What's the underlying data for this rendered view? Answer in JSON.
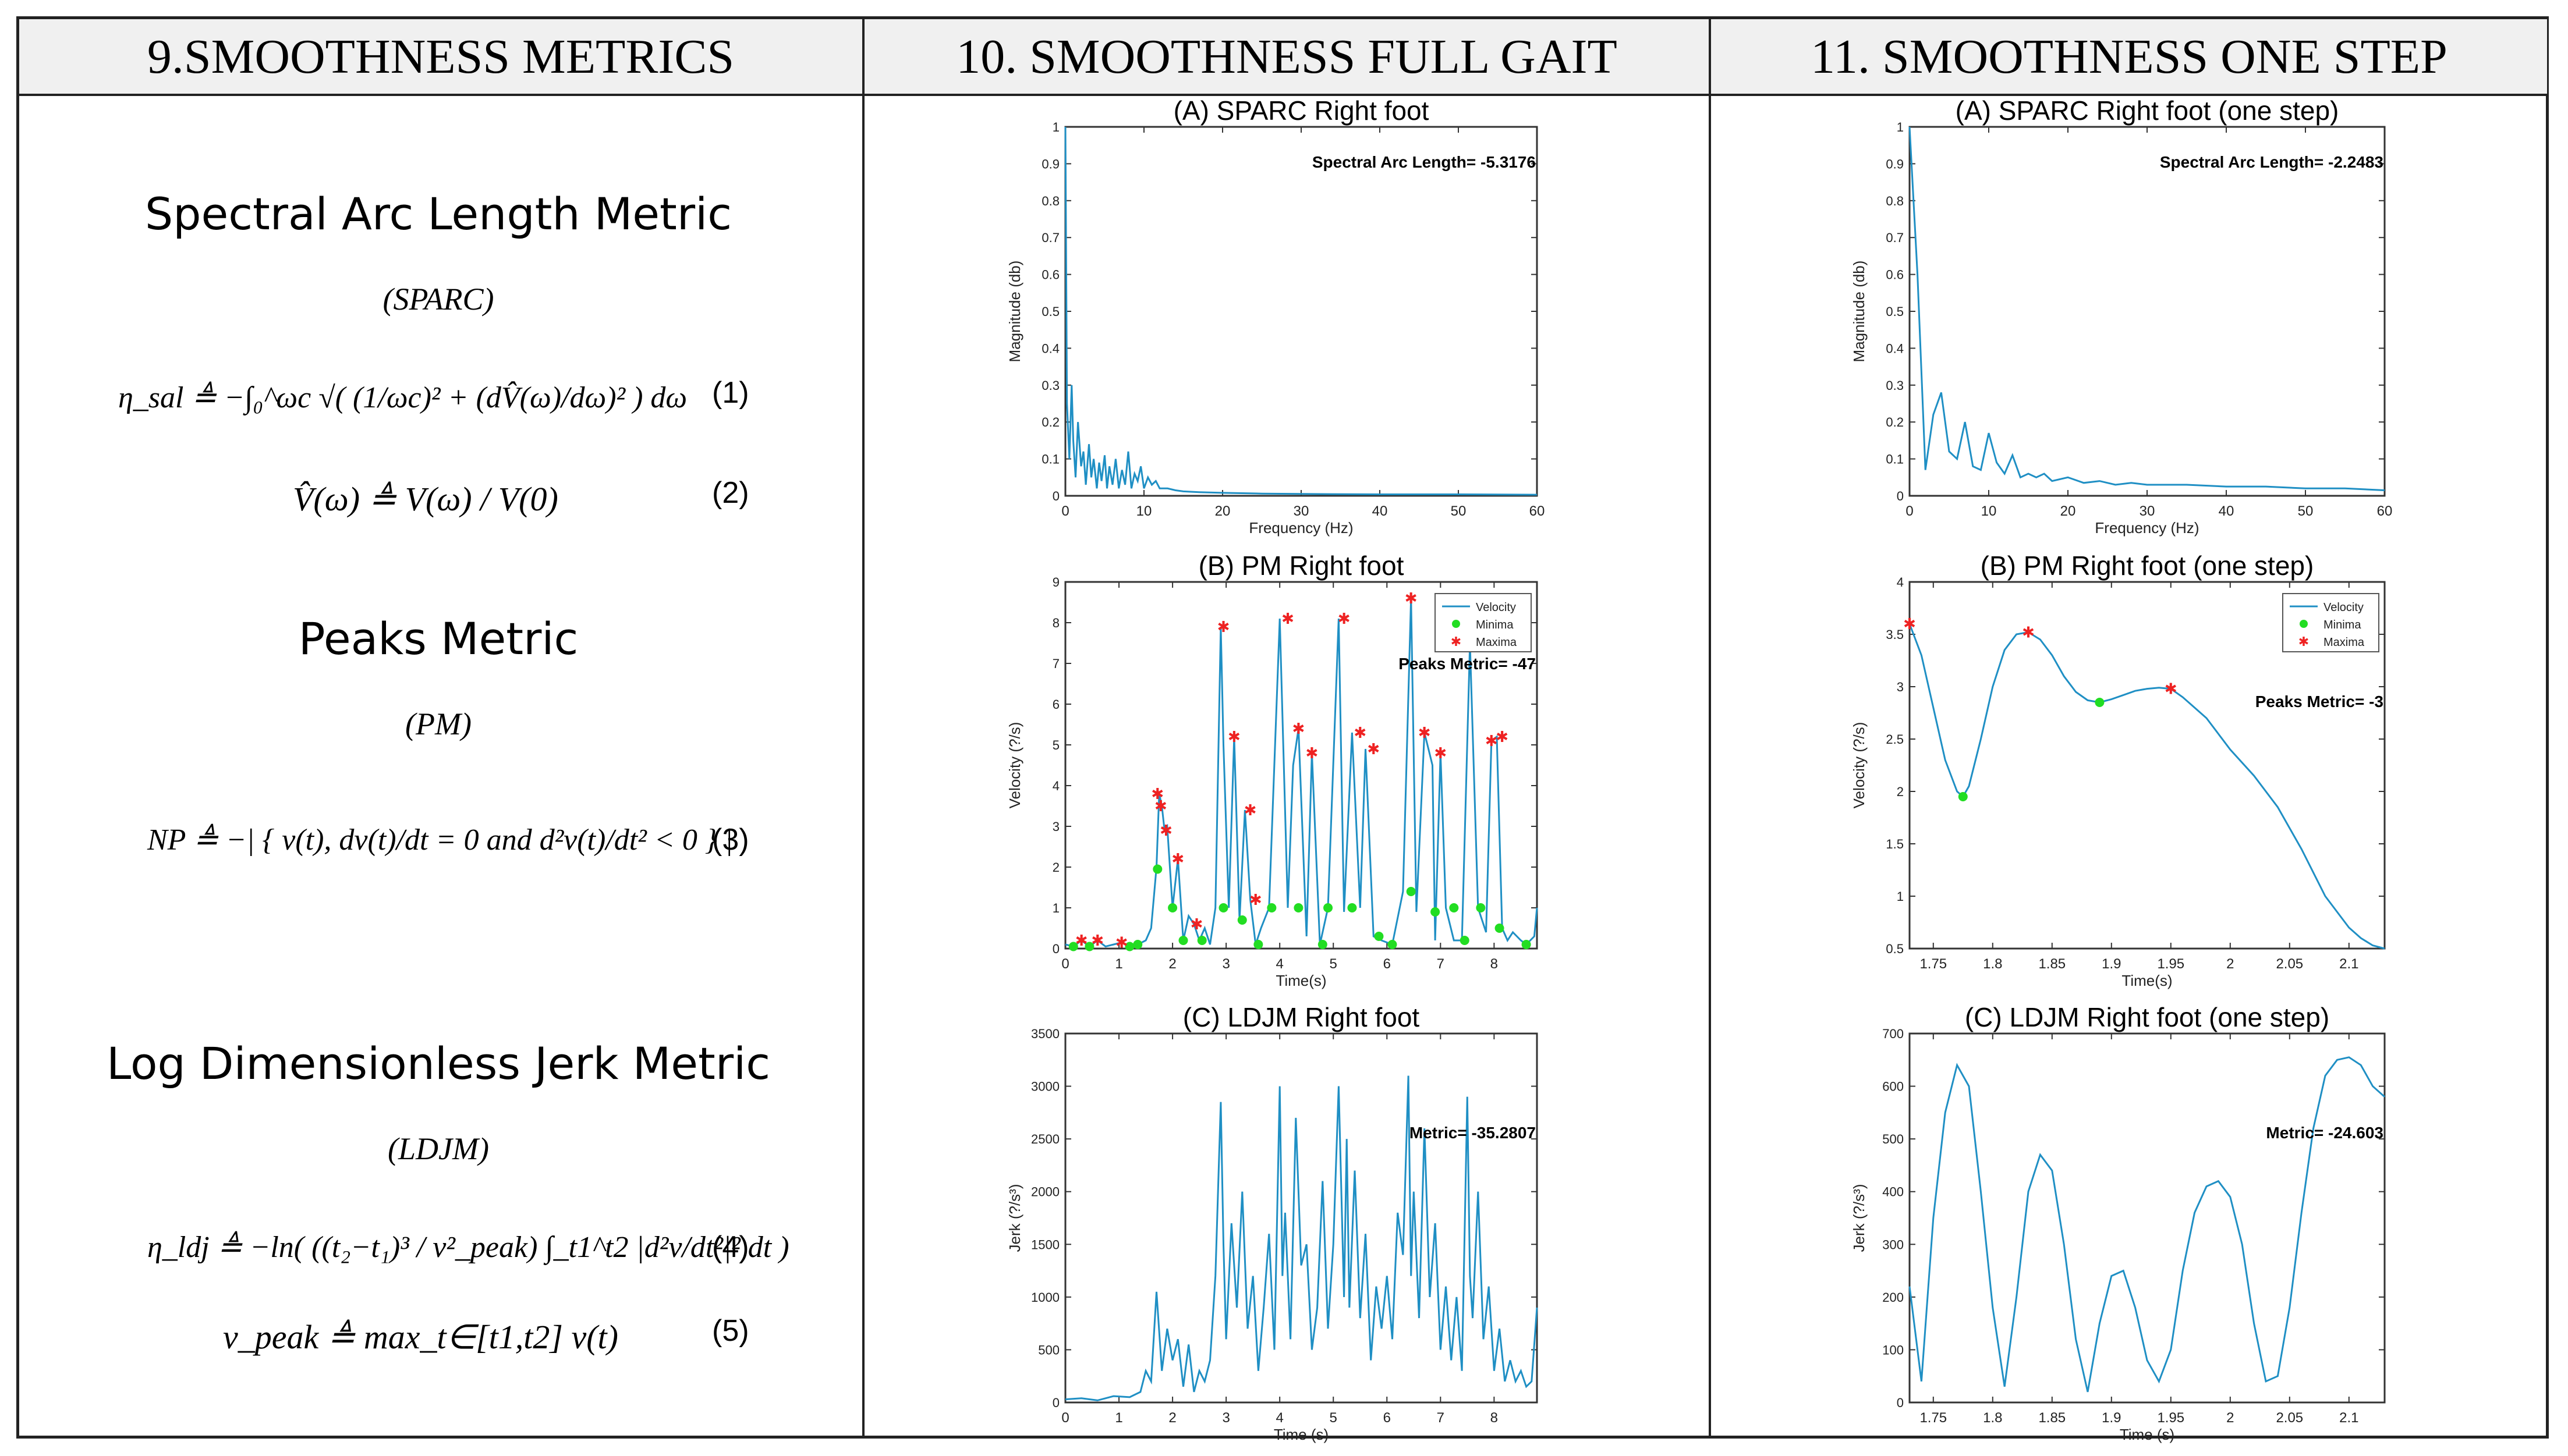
{
  "headers": [
    "9.SMOOTHNESS METRICS",
    "10. SMOOTHNESS FULL GAIT",
    "11. SMOOTHNESS ONE STEP"
  ],
  "metrics": [
    {
      "title": "Spectral Arc Length Metric",
      "abbr": "(SPARC)"
    },
    {
      "title": "Peaks Metric",
      "abbr": "(PM)"
    },
    {
      "title": "Log Dimensionless Jerk Metric",
      "abbr": "(LDJM)"
    }
  ],
  "equations": [
    {
      "text": "η_sal ≜ −∫₀^ωc √( (1/ωc)² + (dV̂(ω)/dω)² ) dω",
      "num": "(1)"
    },
    {
      "text": "V̂(ω) ≜ V(ω) / V(0)",
      "num": "(2)"
    },
    {
      "text": "NP ≜ −| { v(t), dv(t)/dt = 0 and d²v(t)/dt² < 0 } |",
      "num": "(3)"
    },
    {
      "text": "η_ldj ≜ −ln( ((t₂−t₁)³ / v²_peak) ∫_t1^t2 |d²v/dt²|² dt )",
      "num": "(4)"
    },
    {
      "text": "v_peak ≜ max_t∈[t1,t2] v(t)",
      "num": "(5)"
    }
  ],
  "chart_data": [
    {
      "id": "sparc_full",
      "type": "line",
      "title": "(A) SPARC Right foot",
      "xlabel": "Frequency (Hz)",
      "ylabel": "Magnitude (db)",
      "xlim": [
        0,
        60
      ],
      "ylim": [
        0,
        1
      ],
      "xticks": [
        0,
        10,
        20,
        30,
        40,
        50,
        60
      ],
      "yticks": [
        0,
        0.1,
        0.2,
        0.3,
        0.4,
        0.5,
        0.6,
        0.7,
        0.8,
        0.9,
        1
      ],
      "annotation": "Spectral Arc Length= -5.3176",
      "series": [
        {
          "name": "Magnitude",
          "x": [
            0,
            0.2,
            0.5,
            0.8,
            1,
            1.3,
            1.6,
            2,
            2.3,
            2.6,
            3,
            3.3,
            3.6,
            4,
            4.3,
            4.6,
            5,
            5.3,
            5.6,
            6,
            6.4,
            6.8,
            7.2,
            7.6,
            8,
            8.4,
            8.8,
            9.2,
            9.6,
            10,
            10.5,
            11,
            11.5,
            12,
            13,
            14,
            15,
            17,
            20,
            25,
            30,
            40,
            50,
            60
          ],
          "y": [
            1,
            0.25,
            0.1,
            0.3,
            0.15,
            0.05,
            0.2,
            0.08,
            0.12,
            0.03,
            0.14,
            0.05,
            0.1,
            0.02,
            0.09,
            0.04,
            0.11,
            0.02,
            0.08,
            0.03,
            0.1,
            0.02,
            0.07,
            0.03,
            0.12,
            0.02,
            0.06,
            0.04,
            0.08,
            0.02,
            0.05,
            0.03,
            0.04,
            0.02,
            0.02,
            0.015,
            0.012,
            0.01,
            0.008,
            0.006,
            0.005,
            0.004,
            0.004,
            0.003
          ]
        }
      ]
    },
    {
      "id": "pm_full",
      "type": "line",
      "title": "(B) PM Right foot",
      "xlabel": "Time(s)",
      "ylabel": "Velocity (?/s)",
      "xlim": [
        0,
        8.8
      ],
      "ylim": [
        0,
        9
      ],
      "xticks": [
        0,
        1,
        2,
        3,
        4,
        5,
        6,
        7,
        8
      ],
      "yticks": [
        0,
        1,
        2,
        3,
        4,
        5,
        6,
        7,
        8,
        9
      ],
      "annotation": "Peaks Metric= -47",
      "legend": [
        "Velocity",
        "Minima",
        "Maxima"
      ],
      "series": [
        {
          "name": "Velocity",
          "x": [
            0,
            0.15,
            0.3,
            0.45,
            0.6,
            0.75,
            0.9,
            1.05,
            1.2,
            1.35,
            1.5,
            1.6,
            1.7,
            1.75,
            1.8,
            1.85,
            1.9,
            2.0,
            2.1,
            2.2,
            2.3,
            2.4,
            2.5,
            2.6,
            2.7,
            2.8,
            2.9,
            2.95,
            3.05,
            3.15,
            3.25,
            3.35,
            3.45,
            3.55,
            3.65,
            3.8,
            4.0,
            4.15,
            4.25,
            4.35,
            4.5,
            4.6,
            4.75,
            4.9,
            5.1,
            5.2,
            5.35,
            5.5,
            5.6,
            5.75,
            5.9,
            6.1,
            6.3,
            6.45,
            6.55,
            6.7,
            6.85,
            6.9,
            7.0,
            7.1,
            7.25,
            7.4,
            7.55,
            7.7,
            7.85,
            7.95,
            8.05,
            8.15,
            8.25,
            8.35,
            8.5,
            8.6,
            8.75,
            8.8
          ],
          "y": [
            0.1,
            0.05,
            0.2,
            0.05,
            0.2,
            0.05,
            0.1,
            0.15,
            0.05,
            0.1,
            0.2,
            0.5,
            2.0,
            3.8,
            3.5,
            2.9,
            3.0,
            1.0,
            2.2,
            0.2,
            0.8,
            0.6,
            0.2,
            0.5,
            0.1,
            1.0,
            7.9,
            5.0,
            1.0,
            5.2,
            0.7,
            3.4,
            1.2,
            0.1,
            0.5,
            1.0,
            8.1,
            1.0,
            4.5,
            5.4,
            0.3,
            4.8,
            0.1,
            1.0,
            8.1,
            0.9,
            5.3,
            1.0,
            4.9,
            0.3,
            0.2,
            0.1,
            1.4,
            8.6,
            0.9,
            5.3,
            4.5,
            0.2,
            4.8,
            1.0,
            0.2,
            0.2,
            7.5,
            1.0,
            0.4,
            5.1,
            5.2,
            0.5,
            0.2,
            0.4,
            0.2,
            0.1,
            0.3,
            1.0
          ]
        }
      ],
      "maxima": [
        [
          1.72,
          3.8
        ],
        [
          1.78,
          3.5
        ],
        [
          1.88,
          2.9
        ],
        [
          2.1,
          2.2
        ],
        [
          2.95,
          7.9
        ],
        [
          3.15,
          5.2
        ],
        [
          3.45,
          3.4
        ],
        [
          3.55,
          1.2
        ],
        [
          4.15,
          8.1
        ],
        [
          4.35,
          5.4
        ],
        [
          4.6,
          4.8
        ],
        [
          5.2,
          8.1
        ],
        [
          5.5,
          5.3
        ],
        [
          5.75,
          4.9
        ],
        [
          6.45,
          8.6
        ],
        [
          6.7,
          5.3
        ],
        [
          7.0,
          4.8
        ],
        [
          7.55,
          7.5
        ],
        [
          7.95,
          5.1
        ],
        [
          8.15,
          5.2
        ],
        [
          0.3,
          0.2
        ],
        [
          0.6,
          0.2
        ],
        [
          1.05,
          0.15
        ],
        [
          2.45,
          0.6
        ]
      ],
      "minima": [
        [
          1.72,
          1.95
        ],
        [
          2.0,
          1.0
        ],
        [
          2.95,
          1.0
        ],
        [
          3.3,
          0.7
        ],
        [
          3.85,
          1.0
        ],
        [
          4.35,
          1.0
        ],
        [
          4.9,
          1.0
        ],
        [
          5.35,
          1.0
        ],
        [
          5.85,
          0.3
        ],
        [
          6.45,
          1.4
        ],
        [
          6.9,
          0.9
        ],
        [
          7.25,
          1.0
        ],
        [
          7.75,
          1.0
        ],
        [
          8.1,
          0.5
        ],
        [
          0.15,
          0.05
        ],
        [
          0.45,
          0.05
        ],
        [
          1.2,
          0.05
        ],
        [
          1.35,
          0.1
        ],
        [
          2.2,
          0.2
        ],
        [
          2.55,
          0.2
        ],
        [
          3.6,
          0.1
        ],
        [
          4.8,
          0.1
        ],
        [
          6.1,
          0.1
        ],
        [
          7.45,
          0.2
        ],
        [
          8.6,
          0.1
        ]
      ]
    },
    {
      "id": "ldjm_full",
      "type": "line",
      "title": "(C) LDJM Right foot",
      "xlabel": "Time (s)",
      "ylabel": "Jerk (?/s³)",
      "xlim": [
        0,
        8.8
      ],
      "ylim": [
        0,
        3500
      ],
      "xticks": [
        0,
        1,
        2,
        3,
        4,
        5,
        6,
        7,
        8
      ],
      "yticks": [
        0,
        500,
        1000,
        1500,
        2000,
        2500,
        3000,
        3500
      ],
      "annotation": "Metric= -35.2807",
      "series": [
        {
          "name": "Jerk",
          "x": [
            0,
            0.3,
            0.6,
            0.9,
            1.2,
            1.4,
            1.5,
            1.6,
            1.7,
            1.8,
            1.9,
            2.0,
            2.1,
            2.2,
            2.3,
            2.4,
            2.5,
            2.6,
            2.7,
            2.8,
            2.9,
            2.95,
            3.0,
            3.1,
            3.2,
            3.3,
            3.4,
            3.5,
            3.6,
            3.7,
            3.8,
            3.9,
            4.0,
            4.05,
            4.1,
            4.2,
            4.3,
            4.4,
            4.5,
            4.6,
            4.7,
            4.8,
            4.9,
            5.0,
            5.1,
            5.2,
            5.25,
            5.3,
            5.4,
            5.5,
            5.6,
            5.7,
            5.8,
            5.9,
            6.0,
            6.1,
            6.2,
            6.3,
            6.4,
            6.45,
            6.5,
            6.6,
            6.7,
            6.8,
            6.9,
            7.0,
            7.1,
            7.2,
            7.3,
            7.4,
            7.5,
            7.55,
            7.6,
            7.7,
            7.8,
            7.9,
            8.0,
            8.1,
            8.2,
            8.3,
            8.4,
            8.5,
            8.6,
            8.7,
            8.8
          ],
          "y": [
            30,
            40,
            20,
            60,
            50,
            100,
            300,
            200,
            1050,
            300,
            700,
            400,
            600,
            150,
            550,
            100,
            300,
            200,
            400,
            1200,
            2850,
            1500,
            600,
            1700,
            900,
            2000,
            700,
            1200,
            300,
            900,
            1600,
            500,
            3000,
            1200,
            1800,
            600,
            2700,
            1300,
            1500,
            500,
            900,
            2100,
            700,
            1500,
            3000,
            1000,
            2500,
            900,
            2200,
            800,
            1600,
            400,
            1100,
            700,
            1200,
            600,
            1800,
            1400,
            3100,
            1200,
            2000,
            800,
            2600,
            1000,
            1700,
            500,
            1100,
            400,
            1000,
            300,
            2900,
            1200,
            800,
            2000,
            600,
            1100,
            300,
            700,
            200,
            400,
            200,
            300,
            150,
            200,
            900
          ]
        }
      ]
    },
    {
      "id": "sparc_step",
      "type": "line",
      "title": "(A) SPARC Right foot (one step)",
      "xlabel": "Frequency (Hz)",
      "ylabel": "Magnitude (db)",
      "xlim": [
        0,
        60
      ],
      "ylim": [
        0,
        1
      ],
      "xticks": [
        0,
        10,
        20,
        30,
        40,
        50,
        60
      ],
      "yticks": [
        0,
        0.1,
        0.2,
        0.3,
        0.4,
        0.5,
        0.6,
        0.7,
        0.8,
        0.9,
        1
      ],
      "annotation": "Spectral Arc Length= -2.2483",
      "series": [
        {
          "name": "Magnitude",
          "x": [
            0,
            1,
            2,
            3,
            4,
            5,
            6,
            7,
            8,
            9,
            10,
            11,
            12,
            13,
            14,
            15,
            16,
            17,
            18,
            20,
            22,
            24,
            26,
            28,
            30,
            35,
            40,
            45,
            50,
            55,
            60
          ],
          "y": [
            1,
            0.6,
            0.07,
            0.22,
            0.28,
            0.12,
            0.1,
            0.2,
            0.08,
            0.07,
            0.17,
            0.09,
            0.06,
            0.11,
            0.05,
            0.06,
            0.05,
            0.06,
            0.04,
            0.05,
            0.035,
            0.04,
            0.03,
            0.035,
            0.03,
            0.03,
            0.025,
            0.025,
            0.02,
            0.02,
            0.015
          ]
        }
      ]
    },
    {
      "id": "pm_step",
      "type": "line",
      "title": "(B) PM Right foot (one step)",
      "xlabel": "Time(s)",
      "ylabel": "Velocity (?/s)",
      "xlim": [
        1.73,
        2.13
      ],
      "ylim": [
        0.5,
        4
      ],
      "xticks": [
        1.75,
        1.8,
        1.85,
        1.9,
        1.95,
        2,
        2.05,
        2.1
      ],
      "yticks": [
        0.5,
        1,
        1.5,
        2,
        2.5,
        3,
        3.5,
        4
      ],
      "annotation": "Peaks Metric= -3",
      "legend": [
        "Velocity",
        "Minima",
        "Maxima"
      ],
      "series": [
        {
          "name": "Velocity",
          "x": [
            1.73,
            1.74,
            1.75,
            1.76,
            1.77,
            1.775,
            1.78,
            1.79,
            1.8,
            1.81,
            1.82,
            1.83,
            1.84,
            1.85,
            1.86,
            1.87,
            1.88,
            1.89,
            1.9,
            1.91,
            1.92,
            1.93,
            1.94,
            1.95,
            1.96,
            1.97,
            1.98,
            1.99,
            2.0,
            2.02,
            2.04,
            2.06,
            2.08,
            2.1,
            2.11,
            2.12,
            2.13
          ],
          "y": [
            3.6,
            3.3,
            2.8,
            2.3,
            2.0,
            1.95,
            2.05,
            2.5,
            3.0,
            3.35,
            3.5,
            3.52,
            3.45,
            3.3,
            3.1,
            2.95,
            2.87,
            2.85,
            2.88,
            2.92,
            2.96,
            2.98,
            2.99,
            2.98,
            2.9,
            2.8,
            2.7,
            2.55,
            2.4,
            2.15,
            1.85,
            1.45,
            1.0,
            0.7,
            0.6,
            0.53,
            0.5
          ]
        }
      ],
      "maxima": [
        [
          1.73,
          3.6
        ],
        [
          1.83,
          3.52
        ],
        [
          1.95,
          2.98
        ]
      ],
      "minima": [
        [
          1.775,
          1.95
        ],
        [
          1.89,
          2.85
        ]
      ]
    },
    {
      "id": "ldjm_step",
      "type": "line",
      "title": "(C) LDJM Right foot (one step)",
      "xlabel": "Time (s)",
      "ylabel": "Jerk (?/s³)",
      "xlim": [
        1.73,
        2.13
      ],
      "ylim": [
        0,
        700
      ],
      "xticks": [
        1.75,
        1.8,
        1.85,
        1.9,
        1.95,
        2,
        2.05,
        2.1
      ],
      "yticks": [
        0,
        100,
        200,
        300,
        400,
        500,
        600,
        700
      ],
      "annotation": "Metric= -24.603",
      "series": [
        {
          "name": "Jerk",
          "x": [
            1.73,
            1.74,
            1.75,
            1.76,
            1.77,
            1.78,
            1.79,
            1.8,
            1.81,
            1.82,
            1.83,
            1.84,
            1.85,
            1.86,
            1.87,
            1.88,
            1.89,
            1.9,
            1.91,
            1.92,
            1.93,
            1.94,
            1.95,
            1.96,
            1.97,
            1.98,
            1.99,
            2.0,
            2.01,
            2.02,
            2.03,
            2.04,
            2.05,
            2.06,
            2.07,
            2.08,
            2.09,
            2.1,
            2.11,
            2.12,
            2.13
          ],
          "y": [
            220,
            40,
            350,
            550,
            640,
            600,
            400,
            180,
            30,
            200,
            400,
            470,
            440,
            300,
            120,
            20,
            150,
            240,
            250,
            180,
            80,
            40,
            100,
            250,
            360,
            410,
            420,
            390,
            300,
            150,
            40,
            50,
            180,
            360,
            520,
            620,
            650,
            655,
            640,
            600,
            580
          ]
        }
      ]
    }
  ]
}
